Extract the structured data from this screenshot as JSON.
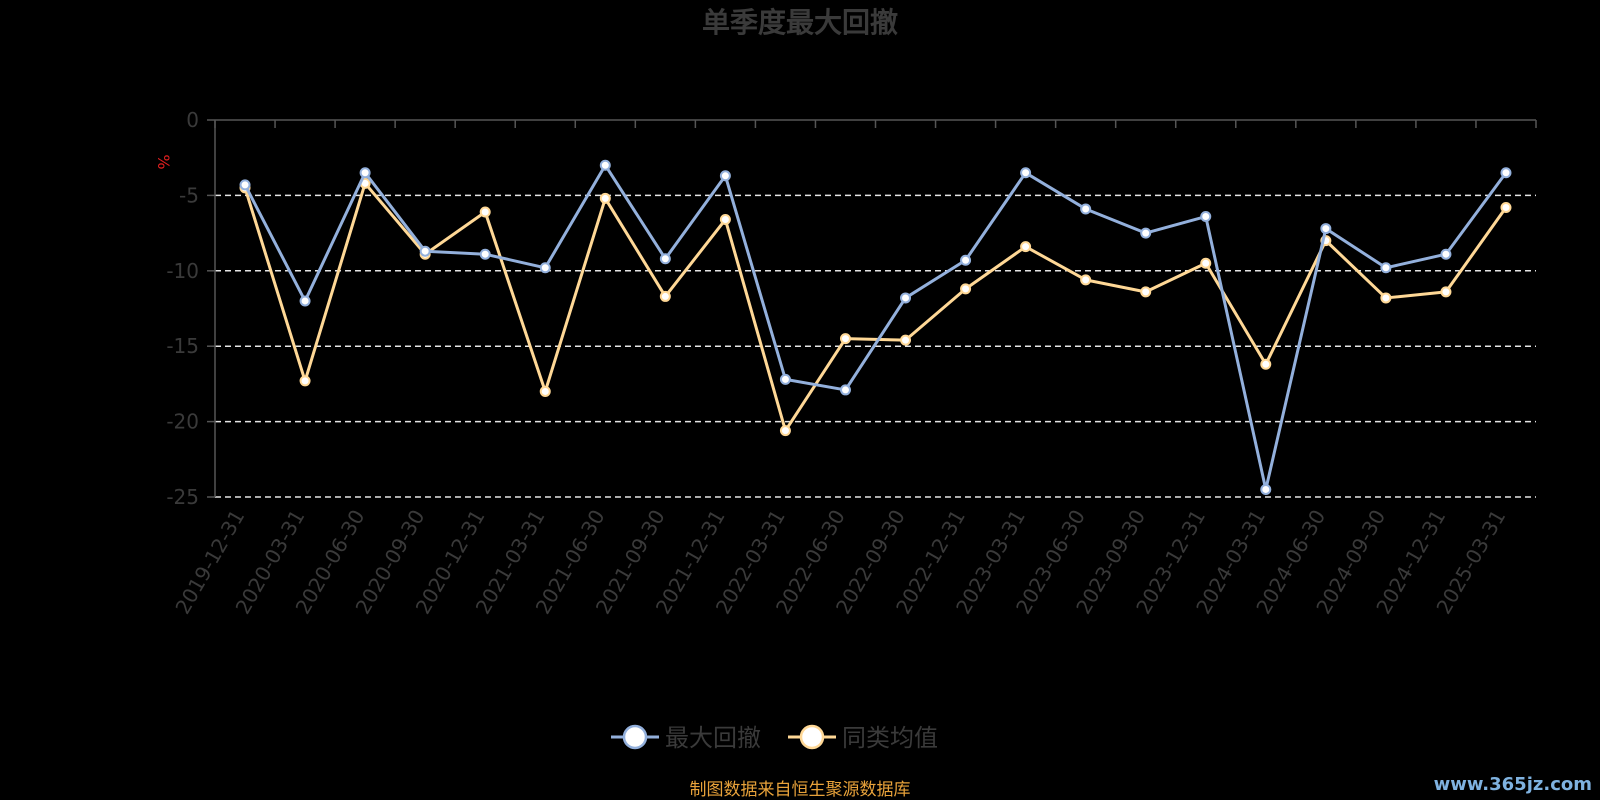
{
  "chart_data": {
    "type": "line",
    "title": "单季度最大回撤",
    "ylabel": "%",
    "ylim": [
      -25,
      0
    ],
    "yticks": [
      0,
      -5,
      -10,
      -15,
      -20,
      -25
    ],
    "grid": true,
    "legend_position": "bottom",
    "categories": [
      "2019-12-31",
      "2020-03-31",
      "2020-06-30",
      "2020-09-30",
      "2020-12-31",
      "2021-03-31",
      "2021-06-30",
      "2021-09-30",
      "2021-12-31",
      "2022-03-31",
      "2022-06-30",
      "2022-09-30",
      "2022-12-31",
      "2023-03-31",
      "2023-06-30",
      "2023-09-30",
      "2023-12-31",
      "2024-03-31",
      "2024-06-30",
      "2024-09-30",
      "2024-12-31",
      "2025-03-31"
    ],
    "series": [
      {
        "name": "最大回撤",
        "color": "#93b0dc",
        "values": [
          -4.3,
          -12.0,
          -3.5,
          -8.7,
          -8.9,
          -9.8,
          -3.0,
          -9.2,
          -3.7,
          -17.2,
          -17.9,
          -11.8,
          -9.3,
          -3.5,
          -5.9,
          -7.5,
          -6.4,
          -24.5,
          -7.2,
          -9.8,
          -8.9,
          -3.5
        ]
      },
      {
        "name": "同类均值",
        "color": "#ffd896",
        "values": [
          -4.5,
          -17.3,
          -4.2,
          -8.9,
          -6.1,
          -18.0,
          -5.2,
          -11.7,
          -6.6,
          -20.6,
          -14.5,
          -14.6,
          -11.2,
          -8.4,
          -10.6,
          -11.4,
          -9.5,
          -16.2,
          -8.0,
          -11.8,
          -11.4,
          -5.8
        ]
      }
    ]
  },
  "footer": {
    "source": "制图数据来自恒生聚源数据库",
    "watermark": "www.365jz.com"
  }
}
